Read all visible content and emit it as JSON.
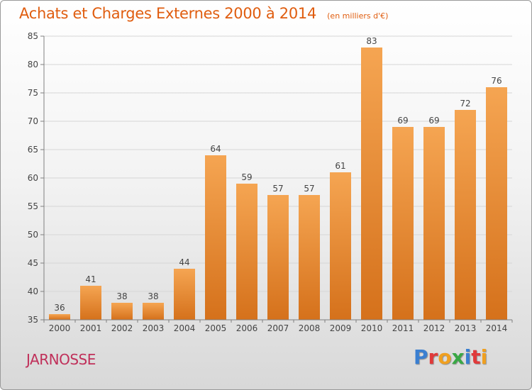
{
  "header": {
    "title": "Achats et Charges Externes 2000 à 2014",
    "unit": "(en milliers d'€)"
  },
  "footer": {
    "place": "JARNOSSE",
    "brand": "Proxiti"
  },
  "colors": {
    "title": "#e05d0f",
    "place": "#c0305a",
    "bar_top": "#f5a552",
    "bar_bottom": "#d5711b",
    "grid": "#d6d6d6",
    "axis": "#808080",
    "brand_letters": [
      "#3a7fd1",
      "#e03a3a",
      "#f0a020",
      "#39a845",
      "#3a7fd1",
      "#e03a3a",
      "#f0a020"
    ]
  },
  "chart_data": {
    "type": "bar",
    "title": "Achats et Charges Externes 2000 à 2014",
    "subtitle": "(en milliers d'€)",
    "categories": [
      "2000",
      "2001",
      "2002",
      "2003",
      "2004",
      "2005",
      "2006",
      "2007",
      "2008",
      "2009",
      "2010",
      "2011",
      "2012",
      "2013",
      "2014"
    ],
    "values": [
      36,
      41,
      38,
      38,
      44,
      64,
      59,
      57,
      57,
      61,
      83,
      69,
      69,
      72,
      76
    ],
    "ylim": [
      35,
      85
    ],
    "yticks": [
      35,
      40,
      45,
      50,
      55,
      60,
      65,
      70,
      75,
      80,
      85
    ],
    "grid": true,
    "data_labels": true
  }
}
